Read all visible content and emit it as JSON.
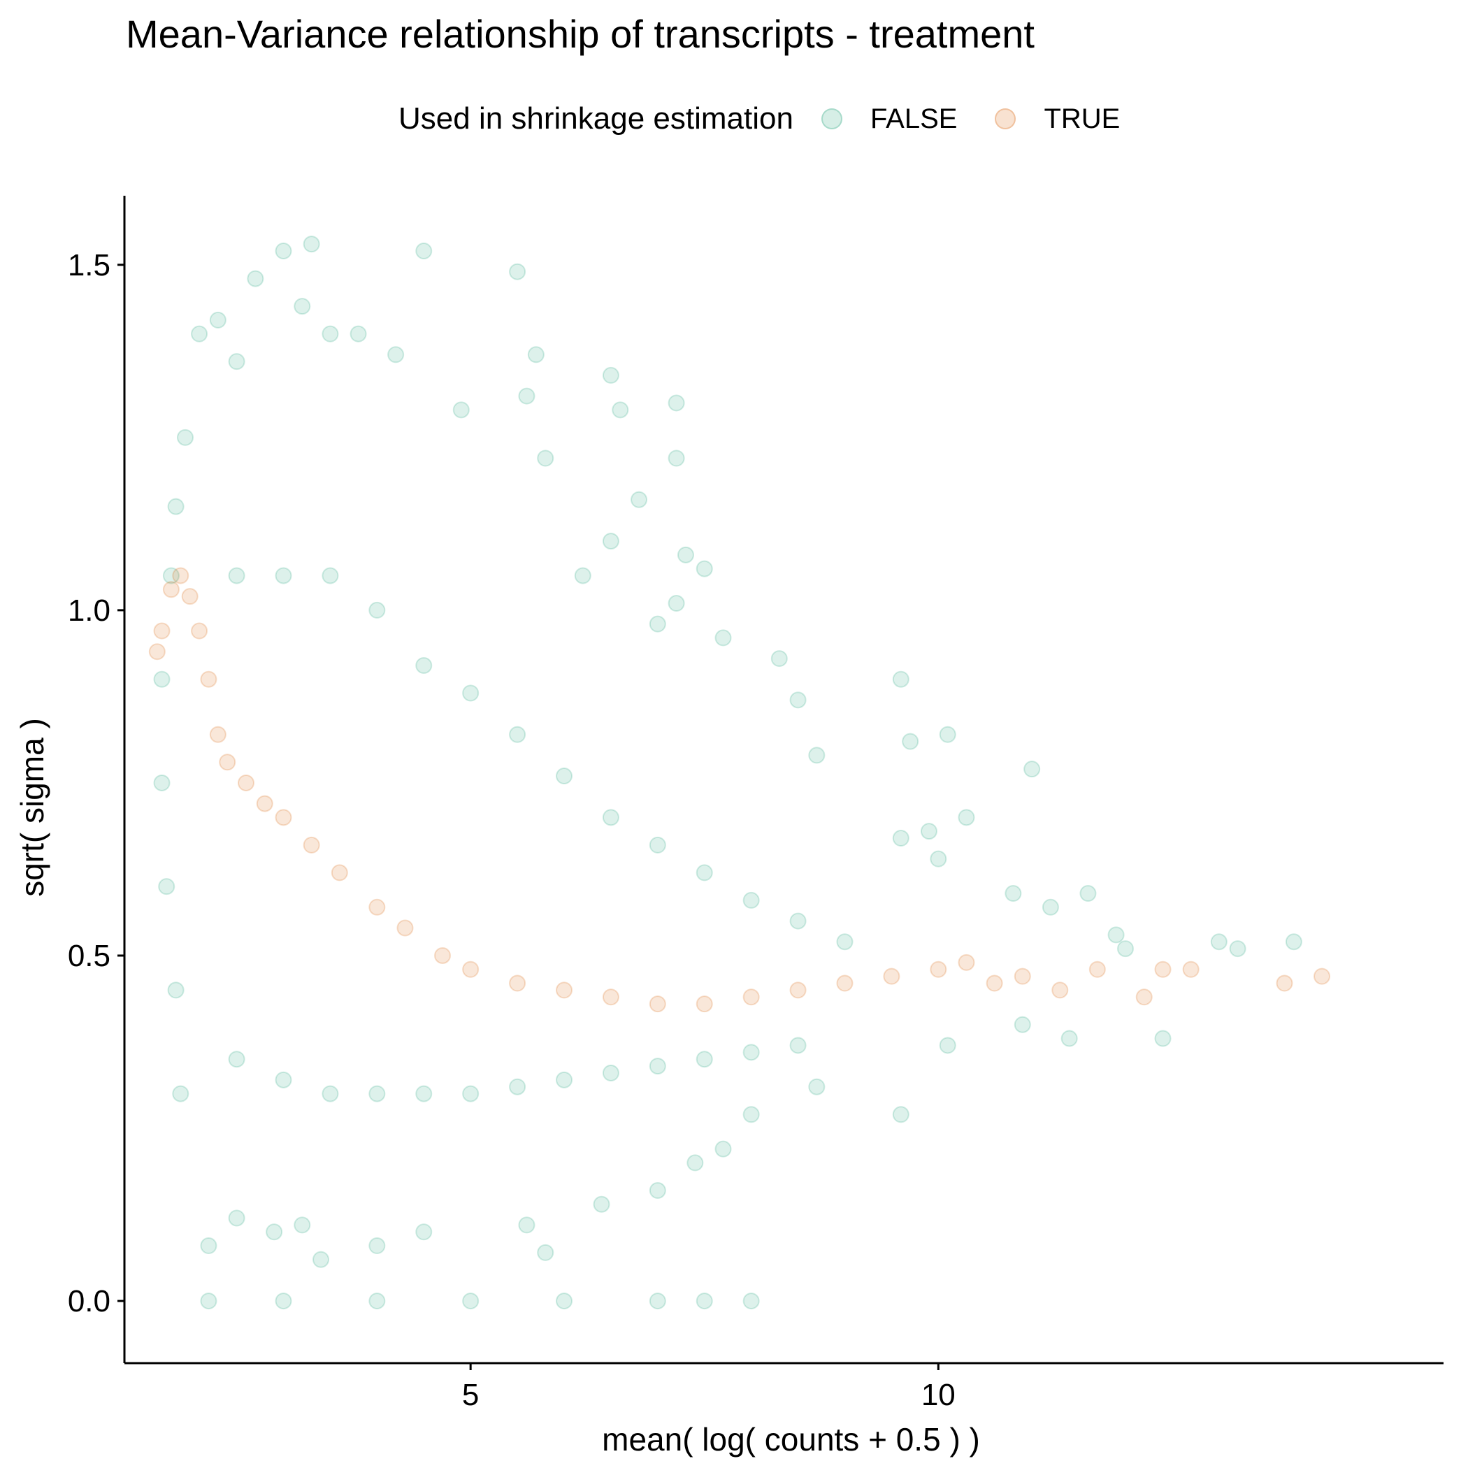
{
  "chart_data": {
    "type": "scatter",
    "title": "Mean-Variance relationship of transcripts - treatment",
    "xlabel": "mean( log( counts + 0.5 ) )",
    "ylabel": "sqrt( sigma )",
    "xlim": [
      1.3,
      15.4
    ],
    "ylim": [
      -0.09,
      1.6
    ],
    "x_ticks": [
      5,
      10
    ],
    "x_tick_labels": [
      "5",
      "10"
    ],
    "y_ticks": [
      0.0,
      0.5,
      1.0,
      1.5
    ],
    "y_tick_labels": [
      "0.0",
      "0.5",
      "1.0",
      "1.5"
    ],
    "grid": false,
    "legend": {
      "title": "Used in shrinkage estimation",
      "placement": "top",
      "entries": [
        "FALSE",
        "TRUE"
      ]
    },
    "colors": {
      "FALSE": "#1b9e77",
      "TRUE": "#d95f02"
    },
    "point_alpha": 0.15,
    "series": [
      {
        "name": "FALSE",
        "description_points": "dense cloud of transcripts plus a row at sqrt(sigma)=0",
        "points": [
          [
            1.95,
            1.25
          ],
          [
            2.1,
            1.4
          ],
          [
            2.3,
            1.42
          ],
          [
            2.5,
            1.36
          ],
          [
            2.7,
            1.48
          ],
          [
            3.0,
            1.52
          ],
          [
            3.2,
            1.44
          ],
          [
            3.3,
            1.53
          ],
          [
            3.5,
            1.4
          ],
          [
            3.8,
            1.4
          ],
          [
            4.2,
            1.37
          ],
          [
            4.5,
            1.52
          ],
          [
            5.5,
            1.49
          ],
          [
            5.7,
            1.37
          ],
          [
            6.5,
            1.34
          ],
          [
            7.2,
            1.3
          ],
          [
            6.6,
            1.29
          ],
          [
            5.6,
            1.31
          ],
          [
            4.9,
            1.29
          ],
          [
            5.8,
            1.22
          ],
          [
            7.2,
            1.22
          ],
          [
            6.8,
            1.16
          ],
          [
            6.5,
            1.1
          ],
          [
            7.3,
            1.08
          ],
          [
            7.5,
            1.06
          ],
          [
            6.2,
            1.05
          ],
          [
            7.2,
            1.01
          ],
          [
            7.0,
            0.98
          ],
          [
            7.7,
            0.96
          ],
          [
            8.3,
            0.93
          ],
          [
            9.6,
            0.9
          ],
          [
            8.5,
            0.87
          ],
          [
            9.7,
            0.81
          ],
          [
            10.1,
            0.82
          ],
          [
            11.0,
            0.77
          ],
          [
            8.7,
            0.79
          ],
          [
            10.3,
            0.7
          ],
          [
            9.9,
            0.68
          ],
          [
            9.6,
            0.67
          ],
          [
            10.0,
            0.64
          ],
          [
            10.8,
            0.59
          ],
          [
            11.6,
            0.59
          ],
          [
            11.2,
            0.57
          ],
          [
            11.9,
            0.53
          ],
          [
            12.0,
            0.51
          ],
          [
            13.0,
            0.52
          ],
          [
            13.2,
            0.51
          ],
          [
            13.8,
            0.52
          ],
          [
            11.4,
            0.38
          ],
          [
            12.4,
            0.38
          ],
          [
            10.1,
            0.37
          ],
          [
            10.9,
            0.4
          ],
          [
            9.6,
            0.27
          ],
          [
            8.7,
            0.31
          ],
          [
            8.0,
            0.27
          ],
          [
            7.7,
            0.22
          ],
          [
            7.4,
            0.2
          ],
          [
            7.0,
            0.16
          ],
          [
            6.4,
            0.14
          ],
          [
            5.8,
            0.07
          ],
          [
            5.6,
            0.11
          ],
          [
            4.5,
            0.1
          ],
          [
            4.0,
            0.08
          ],
          [
            3.4,
            0.06
          ],
          [
            3.2,
            0.11
          ],
          [
            2.9,
            0.1
          ],
          [
            2.5,
            0.12
          ],
          [
            2.2,
            0.08
          ],
          [
            1.9,
            0.3
          ],
          [
            1.85,
            0.45
          ],
          [
            1.75,
            0.6
          ],
          [
            1.7,
            0.75
          ],
          [
            1.7,
            0.9
          ],
          [
            1.8,
            1.05
          ],
          [
            1.85,
            1.15
          ],
          [
            2.5,
            1.05
          ],
          [
            3.0,
            1.05
          ],
          [
            3.5,
            1.05
          ],
          [
            4.0,
            1.0
          ],
          [
            4.5,
            0.92
          ],
          [
            5.0,
            0.88
          ],
          [
            5.5,
            0.82
          ],
          [
            6.0,
            0.76
          ],
          [
            6.5,
            0.7
          ],
          [
            7.0,
            0.66
          ],
          [
            7.5,
            0.62
          ],
          [
            8.0,
            0.58
          ],
          [
            8.5,
            0.55
          ],
          [
            9.0,
            0.52
          ],
          [
            2.5,
            0.35
          ],
          [
            3.0,
            0.32
          ],
          [
            3.5,
            0.3
          ],
          [
            4.0,
            0.3
          ],
          [
            4.5,
            0.3
          ],
          [
            5.0,
            0.3
          ],
          [
            5.5,
            0.31
          ],
          [
            6.0,
            0.32
          ],
          [
            6.5,
            0.33
          ],
          [
            7.0,
            0.34
          ],
          [
            7.5,
            0.35
          ],
          [
            8.0,
            0.36
          ],
          [
            8.5,
            0.37
          ],
          [
            2.2,
            0.0
          ],
          [
            3.0,
            0.0
          ],
          [
            4.0,
            0.0
          ],
          [
            5.0,
            0.0
          ],
          [
            6.0,
            0.0
          ],
          [
            7.0,
            0.0
          ],
          [
            7.5,
            0.0
          ],
          [
            8.0,
            0.0
          ]
        ]
      },
      {
        "name": "TRUE",
        "description_points": "points along the mean-variance trend, used for shrinkage",
        "points": [
          [
            1.65,
            0.94
          ],
          [
            1.7,
            0.97
          ],
          [
            1.8,
            1.03
          ],
          [
            1.9,
            1.05
          ],
          [
            2.0,
            1.02
          ],
          [
            2.1,
            0.97
          ],
          [
            2.2,
            0.9
          ],
          [
            2.3,
            0.82
          ],
          [
            2.4,
            0.78
          ],
          [
            2.6,
            0.75
          ],
          [
            2.8,
            0.72
          ],
          [
            3.0,
            0.7
          ],
          [
            3.3,
            0.66
          ],
          [
            3.6,
            0.62
          ],
          [
            4.0,
            0.57
          ],
          [
            4.3,
            0.54
          ],
          [
            4.7,
            0.5
          ],
          [
            5.0,
            0.48
          ],
          [
            5.5,
            0.46
          ],
          [
            6.0,
            0.45
          ],
          [
            6.5,
            0.44
          ],
          [
            7.0,
            0.43
          ],
          [
            7.5,
            0.43
          ],
          [
            8.0,
            0.44
          ],
          [
            8.5,
            0.45
          ],
          [
            9.0,
            0.46
          ],
          [
            9.5,
            0.47
          ],
          [
            10.0,
            0.48
          ],
          [
            10.3,
            0.49
          ],
          [
            10.6,
            0.46
          ],
          [
            10.9,
            0.47
          ],
          [
            11.3,
            0.45
          ],
          [
            11.7,
            0.48
          ],
          [
            12.2,
            0.44
          ],
          [
            12.4,
            0.48
          ],
          [
            12.7,
            0.48
          ],
          [
            13.7,
            0.46
          ],
          [
            14.1,
            0.47
          ]
        ]
      }
    ]
  }
}
